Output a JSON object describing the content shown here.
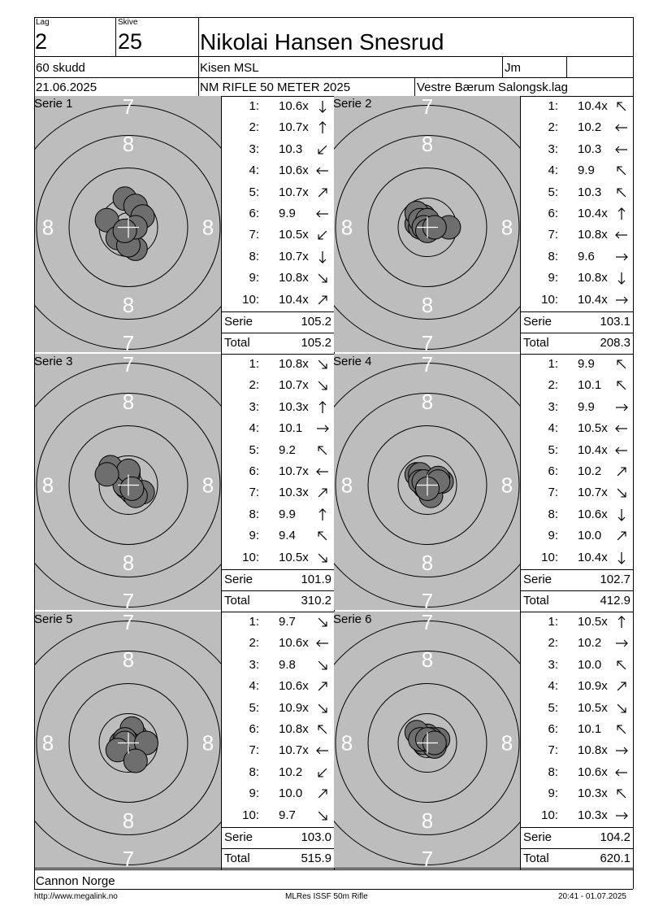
{
  "header": {
    "lag_label": "Lag",
    "lag_value": "2",
    "skive_label": "Skive",
    "skive_value": "25",
    "shooter_name": "Nikolai Hansen Snesrud",
    "shots": "60 skudd",
    "club": "Kisen MSL",
    "class": "Jm",
    "date": "21.06.2025",
    "event": "NM RIFLE 50 METER 2025",
    "organizer": "Vestre Bærum Salongsk.lag"
  },
  "ring_labels": {
    "seven": "7",
    "eight": "8"
  },
  "sum_labels": {
    "serie": "Serie",
    "total": "Total"
  },
  "series": [
    {
      "label": "Serie 1",
      "shots": [
        {
          "n": "1:",
          "v": "10.6x",
          "dir": "S"
        },
        {
          "n": "2:",
          "v": "10.7x",
          "dir": "N"
        },
        {
          "n": "3:",
          "v": "10.3",
          "dir": "SW"
        },
        {
          "n": "4:",
          "v": "10.6x",
          "dir": "W"
        },
        {
          "n": "5:",
          "v": "10.7x",
          "dir": "NE"
        },
        {
          "n": "6:",
          "v": "9.9",
          "dir": "W"
        },
        {
          "n": "7:",
          "v": "10.5x",
          "dir": "SW"
        },
        {
          "n": "8:",
          "v": "10.7x",
          "dir": "S"
        },
        {
          "n": "9:",
          "v": "10.8x",
          "dir": "SE"
        },
        {
          "n": "10:",
          "v": "10.4x",
          "dir": "NE"
        }
      ],
      "serie": "105.2",
      "total": "105.2",
      "hits": [
        [
          -1,
          8
        ],
        [
          2,
          6
        ],
        [
          2,
          -6
        ],
        [
          -2,
          -3
        ],
        [
          4,
          3
        ],
        [
          -6,
          2
        ],
        [
          -3,
          -3
        ],
        [
          0,
          -5
        ],
        [
          2,
          0
        ],
        [
          -1,
          -1
        ]
      ]
    },
    {
      "label": "Serie 2",
      "shots": [
        {
          "n": "1:",
          "v": "10.4x",
          "dir": "NW"
        },
        {
          "n": "2:",
          "v": "10.2",
          "dir": "W"
        },
        {
          "n": "3:",
          "v": "10.3",
          "dir": "W"
        },
        {
          "n": "4:",
          "v": "9.9",
          "dir": "NW"
        },
        {
          "n": "5:",
          "v": "10.3",
          "dir": "NW"
        },
        {
          "n": "6:",
          "v": "10.4x",
          "dir": "N"
        },
        {
          "n": "7:",
          "v": "10.8x",
          "dir": "W"
        },
        {
          "n": "8:",
          "v": "9.6",
          "dir": "E"
        },
        {
          "n": "9:",
          "v": "10.8x",
          "dir": "S"
        },
        {
          "n": "10:",
          "v": "10.4x",
          "dir": "E"
        }
      ],
      "serie": "103.1",
      "total": "208.3",
      "hits": [
        [
          -1,
          3
        ],
        [
          -3,
          1
        ],
        [
          -2,
          0
        ],
        [
          -3,
          4
        ],
        [
          -2,
          2
        ],
        [
          0,
          2
        ],
        [
          -1,
          0
        ],
        [
          6,
          0
        ],
        [
          0,
          -1
        ],
        [
          2,
          0
        ]
      ]
    },
    {
      "label": "Serie 3",
      "shots": [
        {
          "n": "1:",
          "v": "10.8x",
          "dir": "SE"
        },
        {
          "n": "2:",
          "v": "10.7x",
          "dir": "SE"
        },
        {
          "n": "3:",
          "v": "10.3x",
          "dir": "N"
        },
        {
          "n": "4:",
          "v": "10.1",
          "dir": "E"
        },
        {
          "n": "5:",
          "v": "9.2",
          "dir": "NW"
        },
        {
          "n": "6:",
          "v": "10.7x",
          "dir": "W"
        },
        {
          "n": "7:",
          "v": "10.3x",
          "dir": "NE"
        },
        {
          "n": "8:",
          "v": "9.9",
          "dir": "N"
        },
        {
          "n": "9:",
          "v": "9.4",
          "dir": "NW"
        },
        {
          "n": "10:",
          "v": "10.5x",
          "dir": "SE"
        }
      ],
      "serie": "101.9",
      "total": "310.2",
      "hits": [
        [
          1,
          -1
        ],
        [
          1,
          -2
        ],
        [
          0,
          3
        ],
        [
          4,
          -2
        ],
        [
          -5,
          5
        ],
        [
          -1,
          0
        ],
        [
          2,
          -3
        ],
        [
          0,
          4
        ],
        [
          -6,
          3
        ],
        [
          1,
          -1
        ]
      ]
    },
    {
      "label": "Serie 4",
      "shots": [
        {
          "n": "1:",
          "v": "9.9",
          "dir": "NW"
        },
        {
          "n": "2:",
          "v": "10.1",
          "dir": "NW"
        },
        {
          "n": "3:",
          "v": "9.9",
          "dir": "E"
        },
        {
          "n": "4:",
          "v": "10.5x",
          "dir": "W"
        },
        {
          "n": "5:",
          "v": "10.4x",
          "dir": "W"
        },
        {
          "n": "6:",
          "v": "10.2",
          "dir": "NE"
        },
        {
          "n": "7:",
          "v": "10.7x",
          "dir": "SE"
        },
        {
          "n": "8:",
          "v": "10.6x",
          "dir": "S"
        },
        {
          "n": "9:",
          "v": "10.0",
          "dir": "NE"
        },
        {
          "n": "10:",
          "v": "10.4x",
          "dir": "S"
        }
      ],
      "serie": "102.7",
      "total": "412.9",
      "hits": [
        [
          -3,
          3
        ],
        [
          -2,
          3
        ],
        [
          4,
          1
        ],
        [
          -2,
          1
        ],
        [
          -1,
          1
        ],
        [
          3,
          2
        ],
        [
          0,
          -1
        ],
        [
          1,
          -3
        ],
        [
          3,
          1
        ],
        [
          0,
          -1
        ]
      ]
    },
    {
      "label": "Serie 5",
      "shots": [
        {
          "n": "1:",
          "v": "9.7",
          "dir": "SE"
        },
        {
          "n": "2:",
          "v": "10.6x",
          "dir": "W"
        },
        {
          "n": "3:",
          "v": "9.8",
          "dir": "SE"
        },
        {
          "n": "4:",
          "v": "10.6x",
          "dir": "NE"
        },
        {
          "n": "5:",
          "v": "10.9x",
          "dir": "SE"
        },
        {
          "n": "6:",
          "v": "10.8x",
          "dir": "NW"
        },
        {
          "n": "7:",
          "v": "10.7x",
          "dir": "W"
        },
        {
          "n": "8:",
          "v": "10.2",
          "dir": "SW"
        },
        {
          "n": "9:",
          "v": "10.0",
          "dir": "NE"
        },
        {
          "n": "10:",
          "v": "9.7",
          "dir": "SE"
        }
      ],
      "serie": "103.0",
      "total": "515.9",
      "hits": [
        [
          2,
          2
        ],
        [
          -1,
          1
        ],
        [
          1,
          4
        ],
        [
          -2,
          0
        ],
        [
          0,
          0
        ],
        [
          -1,
          1
        ],
        [
          -1,
          0
        ],
        [
          -3,
          -2
        ],
        [
          5,
          0
        ],
        [
          2,
          -5
        ]
      ]
    },
    {
      "label": "Serie 6",
      "shots": [
        {
          "n": "1:",
          "v": "10.5x",
          "dir": "N"
        },
        {
          "n": "2:",
          "v": "10.2",
          "dir": "E"
        },
        {
          "n": "3:",
          "v": "10.0",
          "dir": "NW"
        },
        {
          "n": "4:",
          "v": "10.9x",
          "dir": "NE"
        },
        {
          "n": "5:",
          "v": "10.5x",
          "dir": "SE"
        },
        {
          "n": "6:",
          "v": "10.1",
          "dir": "NW"
        },
        {
          "n": "7:",
          "v": "10.8x",
          "dir": "E"
        },
        {
          "n": "8:",
          "v": "10.6x",
          "dir": "W"
        },
        {
          "n": "9:",
          "v": "10.3x",
          "dir": "NW"
        },
        {
          "n": "10:",
          "v": "10.3x",
          "dir": "E"
        }
      ],
      "serie": "104.2",
      "total": "620.1",
      "hits": [
        [
          0,
          2
        ],
        [
          3,
          1
        ],
        [
          -3,
          3
        ],
        [
          1,
          0
        ],
        [
          -1,
          0
        ],
        [
          2,
          -1
        ],
        [
          1,
          1
        ],
        [
          -2,
          1
        ],
        [
          0,
          1
        ],
        [
          2,
          0
        ]
      ]
    }
  ],
  "footer": {
    "sponsor": "Cannon Norge",
    "url": "http://www.megalink.no",
    "software": "MLRes ISSF 50m Rifle",
    "timestamp": "20:41 - 01.07.2025"
  },
  "colors": {
    "target_bg": "#bdbdbd",
    "hit_fill": "#6e6e6e"
  }
}
